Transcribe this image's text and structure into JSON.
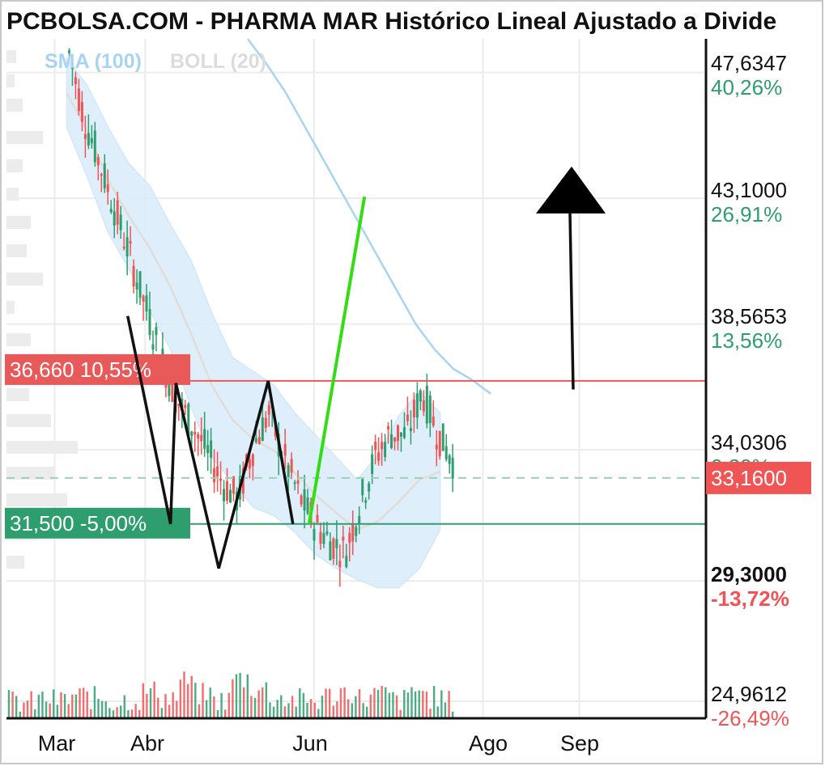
{
  "title": "PCBOLSA.COM - PHARMA MAR Histórico Lineal Ajustado a Divide",
  "legend": {
    "sma_label": "SMA (100)",
    "boll_label": "BOLL (20)"
  },
  "colors": {
    "up": "#2e9e6e",
    "down": "#f05454",
    "sma": "#a8d4f2",
    "boll_fill": "#dbeefb",
    "boll_mid": "#e2dcd8",
    "resistance": "#e85a5a",
    "support": "#2e9e6e",
    "pattern": "#111111",
    "target": "#33dd11",
    "pct_up": "#2e9e6e",
    "pct_down": "#f05454",
    "current_tag": "#f05454"
  },
  "annotations": {
    "resistance": {
      "price": "36,660",
      "pct": "10,55%"
    },
    "support": {
      "price": "31,500",
      "pct": "-5,00%"
    },
    "current": {
      "price": "33,1600"
    }
  },
  "chart_data": {
    "type": "line",
    "title": "PHARMA MAR Histórico Lineal Ajustado a Divide",
    "x_labels": [
      "Mar",
      "Abr",
      "Jun",
      "Ago",
      "Sep"
    ],
    "y_ticks": [
      {
        "value": "47,6347",
        "pct": "40,26%",
        "sign": "up",
        "bold": false
      },
      {
        "value": "43,1000",
        "pct": "26,91%",
        "sign": "up",
        "bold": false
      },
      {
        "value": "38,5653",
        "pct": "13,56%",
        "sign": "up",
        "bold": false
      },
      {
        "value": "34,0306",
        "pct": "0,20%",
        "sign": "up",
        "bold": false
      },
      {
        "value": "29,3000",
        "pct": "-13,72%",
        "sign": "down",
        "bold": true
      },
      {
        "value": "24,9612",
        "pct": "-26,49%",
        "sign": "down",
        "bold": false
      }
    ],
    "ylim": [
      24.96,
      48.5
    ],
    "reference_lines": {
      "resistance": 36.66,
      "support": 31.5,
      "current": 33.16
    },
    "price_series": [
      48.0,
      45.6,
      44.0,
      42.3,
      40.6,
      38.8,
      37.0,
      35.5,
      34.6,
      33.6,
      32.5,
      31.9,
      33.8,
      35.0,
      33.4,
      32.0,
      31.0,
      30.4,
      30.0,
      31.8,
      33.5,
      34.3,
      34.2,
      35.8,
      34.3,
      33.3
    ],
    "sma_100": [
      48.5,
      47.6,
      46.6,
      45.4,
      44.2,
      43.0,
      41.8,
      40.6,
      39.4,
      38.2,
      37.3,
      36.6,
      36.2,
      35.7
    ],
    "boll_upper": [
      47.8,
      46.8,
      45.3,
      44.0,
      43.2,
      41.8,
      40.5,
      38.6,
      37.0,
      36.5,
      36.0,
      35.0,
      34.2,
      33.4,
      32.6,
      33.5,
      34.9,
      35.8,
      35.0
    ],
    "boll_lower": [
      45.3,
      43.5,
      41.5,
      40.2,
      38.7,
      37.3,
      35.2,
      33.4,
      32.5,
      31.6,
      31.3,
      30.7,
      29.9,
      29.4,
      29.0,
      28.7,
      28.7,
      29.4,
      30.8
    ],
    "volume": [
      0.18,
      0.12,
      0.25,
      0.2,
      0.35,
      0.28,
      0.15,
      0.22,
      0.5,
      0.3,
      0.85,
      0.4,
      0.2,
      0.95,
      0.6,
      0.3,
      0.22,
      0.18,
      0.35,
      0.5,
      0.28,
      0.4,
      0.2,
      0.55,
      0.3,
      0.15
    ],
    "pattern_points": [
      [
        34.05,
        39.0
      ],
      [
        37.6,
        31.5
      ],
      [
        38.05,
        36.58
      ],
      [
        41.6,
        29.9
      ],
      [
        45.7,
        36.66
      ],
      [
        47.75,
        31.5
      ]
    ],
    "arrow": {
      "from": 36.35,
      "to": 42.7
    },
    "target_line": [
      [
        47.75,
        31.5
      ],
      [
        51.0,
        43.3
      ]
    ]
  }
}
